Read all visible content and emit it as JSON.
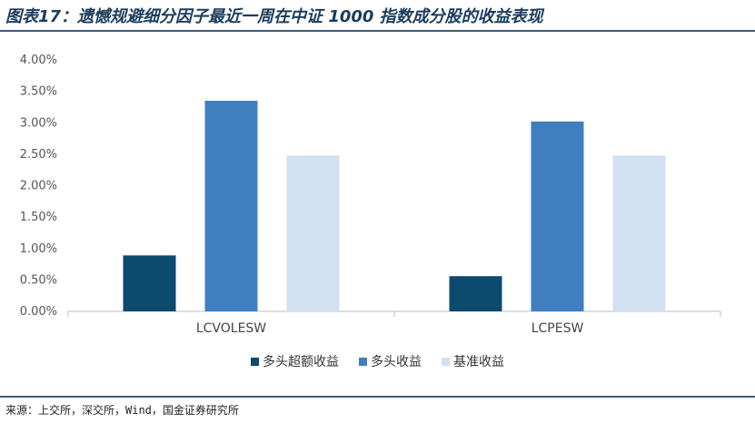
{
  "title": "图表17：遗憾规避细分因子最近一周在中证 1000 指数成分股的收益表现",
  "source": "来源：上交所，深交所，Wind，国金证券研究所",
  "colors": {
    "series": [
      "#0c4a6e",
      "#3f7fbf",
      "#d1e1f2"
    ],
    "axis": "#bfbfbf",
    "text": "#555555"
  },
  "chart_data": {
    "type": "bar",
    "categories": [
      "LCVOLESW",
      "LCPESW"
    ],
    "series": [
      {
        "name": "多头超额收益",
        "values": [
          0.89,
          0.56
        ]
      },
      {
        "name": "多头收益",
        "values": [
          3.35,
          3.02
        ]
      },
      {
        "name": "基准收益",
        "values": [
          2.48,
          2.48
        ]
      }
    ],
    "yticks": [
      "0.00%",
      "0.50%",
      "1.00%",
      "1.50%",
      "2.00%",
      "2.50%",
      "3.00%",
      "3.50%",
      "4.00%"
    ],
    "ylim": [
      0,
      4
    ],
    "grid": false,
    "legend_position": "bottom"
  }
}
